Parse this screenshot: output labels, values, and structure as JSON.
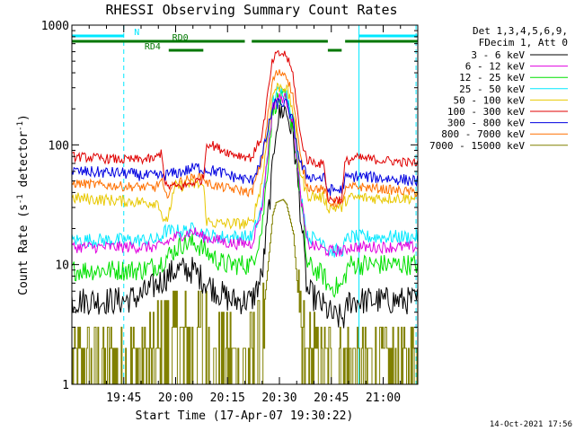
{
  "chart_data": {
    "type": "line",
    "title": "RHESSI Observing Summary Count Rates",
    "xlabel": "Start Time (17-Apr-07 19:30:22)",
    "ylabel_parts": [
      "Count Rate (s",
      "-1",
      " detector",
      "-1",
      ")"
    ],
    "yscale": "log",
    "ylim": [
      1,
      1000
    ],
    "xlim_minutes": [
      0,
      100
    ],
    "x_ticks": [
      {
        "t": 15,
        "label": "19:45"
      },
      {
        "t": 30,
        "label": "20:00"
      },
      {
        "t": 45,
        "label": "20:15"
      },
      {
        "t": 60,
        "label": "20:30"
      },
      {
        "t": 75,
        "label": "20:45"
      },
      {
        "t": 90,
        "label": "21:00"
      }
    ],
    "y_ticks": [
      {
        "v": 1,
        "label": "1"
      },
      {
        "v": 10,
        "label": "10"
      },
      {
        "v": 100,
        "label": "100"
      },
      {
        "v": 1000,
        "label": "1000"
      }
    ],
    "legend_header": [
      "Det 1,3,4,5,6,9,",
      "FDecim 1, Att 0"
    ],
    "series": [
      {
        "name": "3 - 6 keV",
        "color": "#000000",
        "noise": 0.12,
        "stepwise": false,
        "points": [
          [
            0,
            5
          ],
          [
            15,
            5
          ],
          [
            20,
            5.5
          ],
          [
            25,
            7
          ],
          [
            30,
            9
          ],
          [
            35,
            9
          ],
          [
            39,
            7
          ],
          [
            42,
            6
          ],
          [
            46,
            5
          ],
          [
            52,
            5
          ],
          [
            55,
            8
          ],
          [
            58,
            60
          ],
          [
            59,
            150
          ],
          [
            61,
            200
          ],
          [
            62,
            190
          ],
          [
            64,
            120
          ],
          [
            66,
            30
          ],
          [
            68,
            6
          ],
          [
            71,
            5
          ],
          [
            76,
            3.6
          ],
          [
            79,
            3.6
          ],
          [
            80,
            5
          ],
          [
            100,
            5
          ]
        ]
      },
      {
        "name": "6 - 12 keV",
        "color": "#e000e0",
        "noise": 0.05,
        "stepwise": false,
        "points": [
          [
            0,
            14
          ],
          [
            25,
            14
          ],
          [
            30,
            17
          ],
          [
            35,
            19
          ],
          [
            38,
            17
          ],
          [
            42,
            16
          ],
          [
            46,
            15
          ],
          [
            52,
            15
          ],
          [
            55,
            30
          ],
          [
            58,
            200
          ],
          [
            59,
            240
          ],
          [
            61,
            250
          ],
          [
            62,
            240
          ],
          [
            64,
            150
          ],
          [
            66,
            40
          ],
          [
            68,
            15
          ],
          [
            74,
            13
          ],
          [
            79,
            13
          ],
          [
            80,
            14
          ],
          [
            100,
            14
          ]
        ]
      },
      {
        "name": "12 - 25 keV",
        "color": "#00e000",
        "noise": 0.09,
        "stepwise": false,
        "points": [
          [
            0,
            9
          ],
          [
            20,
            9
          ],
          [
            25,
            10
          ],
          [
            28,
            12
          ],
          [
            32,
            15
          ],
          [
            36,
            15
          ],
          [
            40,
            12
          ],
          [
            44,
            10
          ],
          [
            52,
            10
          ],
          [
            55,
            20
          ],
          [
            58,
            190
          ],
          [
            59,
            230
          ],
          [
            61,
            240
          ],
          [
            62,
            230
          ],
          [
            64,
            140
          ],
          [
            66,
            40
          ],
          [
            68,
            10
          ],
          [
            73,
            8
          ],
          [
            74,
            6.5
          ],
          [
            78,
            6.5
          ],
          [
            79,
            8
          ],
          [
            80,
            10
          ],
          [
            100,
            10
          ]
        ]
      },
      {
        "name": "25 - 50 keV",
        "color": "#00e8ff",
        "noise": 0.06,
        "stepwise": false,
        "points": [
          [
            0,
            16
          ],
          [
            25,
            16
          ],
          [
            27,
            19
          ],
          [
            32,
            19
          ],
          [
            36,
            20
          ],
          [
            38,
            18
          ],
          [
            42,
            17
          ],
          [
            46,
            17
          ],
          [
            52,
            17
          ],
          [
            55,
            30
          ],
          [
            58,
            230
          ],
          [
            59,
            270
          ],
          [
            61,
            280
          ],
          [
            62,
            270
          ],
          [
            64,
            170
          ],
          [
            66,
            45
          ],
          [
            68,
            17
          ],
          [
            73,
            16
          ],
          [
            74,
            13
          ],
          [
            78,
            13
          ],
          [
            79,
            15
          ],
          [
            80,
            17
          ],
          [
            100,
            17
          ]
        ]
      },
      {
        "name": "50 - 100 keV",
        "color": "#e8c800",
        "noise": 0.05,
        "stepwise": false,
        "points": [
          [
            0,
            36
          ],
          [
            15,
            34
          ],
          [
            22,
            33
          ],
          [
            25,
            33.5
          ],
          [
            27,
            21
          ],
          [
            30,
            45
          ],
          [
            34,
            47
          ],
          [
            38,
            46
          ],
          [
            39,
            23
          ],
          [
            42,
            22
          ],
          [
            46,
            22
          ],
          [
            52,
            22
          ],
          [
            55,
            50
          ],
          [
            58,
            260
          ],
          [
            59,
            300
          ],
          [
            61,
            310
          ],
          [
            62,
            300
          ],
          [
            64,
            190
          ],
          [
            66,
            60
          ],
          [
            68,
            38
          ],
          [
            73,
            36
          ],
          [
            74,
            30
          ],
          [
            78,
            30
          ],
          [
            79,
            34
          ],
          [
            80,
            36
          ],
          [
            100,
            36
          ]
        ]
      },
      {
        "name": "100 - 300 keV",
        "color": "#e00000",
        "noise": 0.04,
        "stepwise": false,
        "points": [
          [
            0,
            80
          ],
          [
            15,
            75
          ],
          [
            24,
            76
          ],
          [
            26,
            88
          ],
          [
            27,
            45
          ],
          [
            32,
            45
          ],
          [
            38,
            52
          ],
          [
            39,
            105
          ],
          [
            42,
            95
          ],
          [
            46,
            85
          ],
          [
            52,
            78
          ],
          [
            55,
            120
          ],
          [
            58,
            500
          ],
          [
            59,
            560
          ],
          [
            61,
            580
          ],
          [
            62,
            560
          ],
          [
            64,
            380
          ],
          [
            66,
            120
          ],
          [
            68,
            75
          ],
          [
            73,
            68
          ],
          [
            74,
            35
          ],
          [
            78,
            35
          ],
          [
            79,
            72
          ],
          [
            82,
            78
          ],
          [
            100,
            70
          ]
        ]
      },
      {
        "name": "300 - 800 keV",
        "color": "#0000e0",
        "noise": 0.05,
        "stepwise": false,
        "points": [
          [
            0,
            60
          ],
          [
            15,
            58
          ],
          [
            22,
            55
          ],
          [
            26,
            55
          ],
          [
            28,
            57
          ],
          [
            30,
            58
          ],
          [
            34,
            62
          ],
          [
            36,
            65
          ],
          [
            39,
            62
          ],
          [
            42,
            60
          ],
          [
            46,
            55
          ],
          [
            52,
            50
          ],
          [
            55,
            80
          ],
          [
            58,
            200
          ],
          [
            59,
            220
          ],
          [
            61,
            225
          ],
          [
            62,
            220
          ],
          [
            64,
            150
          ],
          [
            66,
            70
          ],
          [
            68,
            55
          ],
          [
            73,
            52
          ],
          [
            74,
            42
          ],
          [
            78,
            42
          ],
          [
            79,
            52
          ],
          [
            82,
            55
          ],
          [
            100,
            50
          ]
        ]
      },
      {
        "name": "800 - 7000 keV",
        "color": "#ff7000",
        "noise": 0.04,
        "stepwise": false,
        "points": [
          [
            0,
            48
          ],
          [
            15,
            45
          ],
          [
            24,
            44
          ],
          [
            26,
            50
          ],
          [
            27,
            37
          ],
          [
            30,
            48
          ],
          [
            34,
            52
          ],
          [
            38,
            55
          ],
          [
            39,
            48
          ],
          [
            42,
            45
          ],
          [
            46,
            43
          ],
          [
            52,
            40
          ],
          [
            55,
            75
          ],
          [
            58,
            340
          ],
          [
            59,
            390
          ],
          [
            61,
            400
          ],
          [
            62,
            390
          ],
          [
            64,
            250
          ],
          [
            66,
            80
          ],
          [
            68,
            45
          ],
          [
            73,
            42
          ],
          [
            74,
            33
          ],
          [
            78,
            33
          ],
          [
            79,
            42
          ],
          [
            82,
            45
          ],
          [
            100,
            40
          ]
        ]
      },
      {
        "name": "7000 - 15000 keV",
        "color": "#808000",
        "noise": 0.0,
        "stepwise": true,
        "points": [
          [
            0,
            1.7
          ],
          [
            20,
            1.7
          ],
          [
            26,
            2.6
          ],
          [
            30,
            3
          ],
          [
            38,
            3.3
          ],
          [
            40,
            2.5
          ],
          [
            46,
            2
          ],
          [
            52,
            2
          ],
          [
            55,
            3
          ],
          [
            58,
            26
          ],
          [
            59,
            33
          ],
          [
            61,
            35
          ],
          [
            62,
            32
          ],
          [
            64,
            18
          ],
          [
            66,
            3
          ],
          [
            68,
            2
          ],
          [
            74,
            1.6
          ],
          [
            100,
            1.6
          ]
        ]
      }
    ],
    "annotations": {
      "flag_bars": [
        {
          "label": "N",
          "color": "#00e8ff",
          "ranges": [
            [
              0,
              15
            ],
            [
              83,
              100
            ]
          ]
        },
        {
          "label": "RD0",
          "color": "#007700",
          "ranges": [
            [
              0,
              50
            ],
            [
              52,
              74
            ],
            [
              79,
              100
            ]
          ]
        },
        {
          "label": "RD4",
          "color": "#007700",
          "ranges": [
            [
              28,
              38
            ],
            [
              74,
              78
            ]
          ]
        }
      ],
      "vertical_lines": [
        {
          "t": 15,
          "color": "#00e8ff",
          "dashed": true
        },
        {
          "t": 83,
          "color": "#00e8ff",
          "dashed": false
        },
        {
          "t": 99.5,
          "color": "#00e8ff",
          "dashed": true
        }
      ]
    }
  },
  "footer_timestamp": "14-Oct-2021 17:56"
}
